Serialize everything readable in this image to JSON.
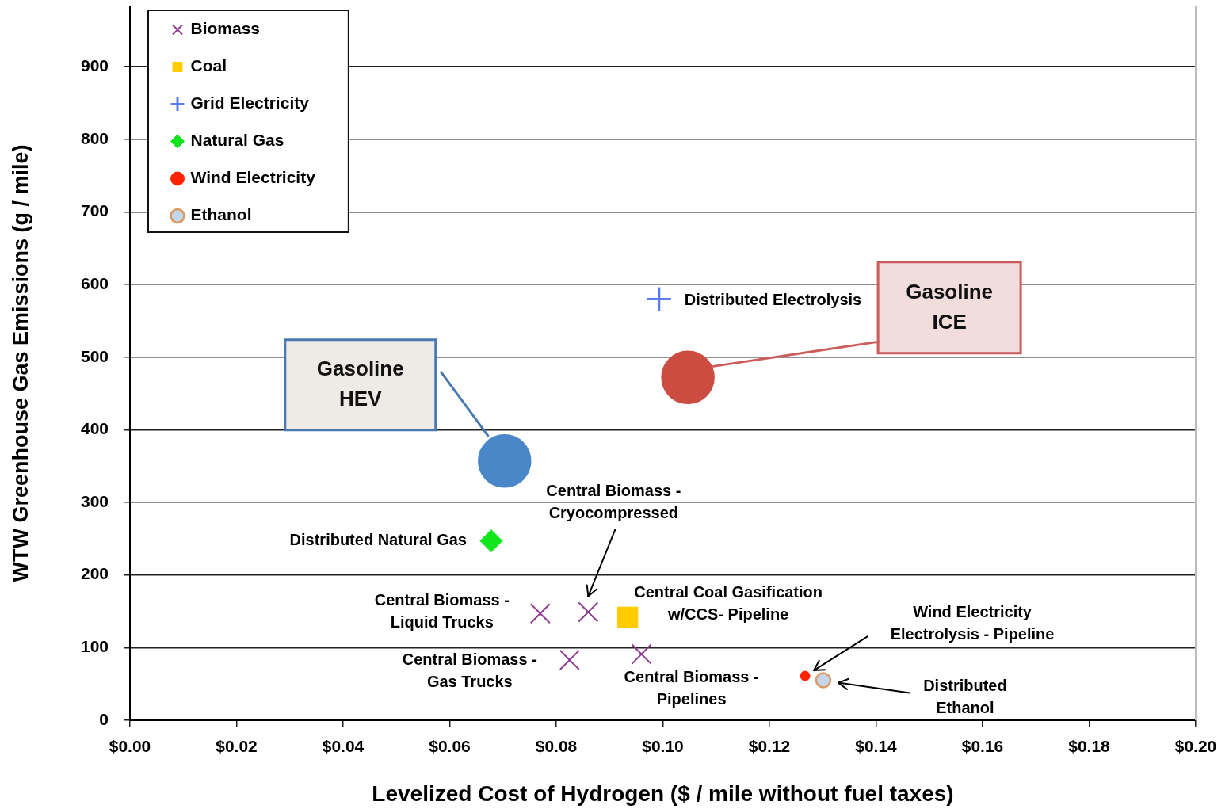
{
  "chart_data": {
    "type": "scatter",
    "xlabel": "Levelized Cost of Hydrogen ($ / mile without fuel taxes)",
    "ylabel": "WTW Greenhouse Gas Emissions (g / mile)",
    "xlim": [
      0,
      0.2
    ],
    "xticks": [
      {
        "value": 0,
        "label": "$0.00"
      },
      {
        "value": 0.02,
        "label": "$0.02"
      },
      {
        "value": 0.04,
        "label": "$0.04"
      },
      {
        "value": 0.06,
        "label": "$0.06"
      },
      {
        "value": 0.08,
        "label": "$0.08"
      },
      {
        "value": 0.1,
        "label": "$0.10"
      },
      {
        "value": 0.12,
        "label": "$0.12"
      },
      {
        "value": 0.14,
        "label": "$0.14"
      },
      {
        "value": 0.16,
        "label": "$0.16"
      },
      {
        "value": 0.18,
        "label": "$0.18"
      },
      {
        "value": 0.2,
        "label": "$0.20"
      }
    ],
    "ylim": [
      0,
      983
    ],
    "yticks": [
      0,
      100,
      200,
      300,
      400,
      500,
      600,
      700,
      800,
      900
    ],
    "grid": "y",
    "legend": "top left",
    "series": [
      {
        "name": "Biomass",
        "color": "#8e3a8e",
        "marker": "cross",
        "x": [
          0.077,
          0.086,
          0.0825,
          0.096
        ],
        "values": [
          147,
          149,
          83,
          91
        ]
      },
      {
        "name": "Coal",
        "color": "#ffcc00",
        "marker": "square",
        "x": [
          0.0934
        ],
        "values": [
          142
        ]
      },
      {
        "name": "Grid Electricity",
        "color": "#5a7cf0",
        "marker": "cross",
        "x": [
          0.0993
        ],
        "values": [
          580
        ]
      },
      {
        "name": "Natural Gas",
        "color": "#11e51b",
        "marker": "diamond",
        "x": [
          0.0678
        ],
        "values": [
          247
        ]
      },
      {
        "name": "Wind Electricity",
        "color": "#ff2200",
        "marker": "circle",
        "x": [
          0.1267
        ],
        "values": [
          61
        ]
      },
      {
        "name": "Ethanol",
        "color": "#c5d5ea",
        "marker": "circle",
        "x": [
          0.1301
        ],
        "values": [
          55
        ]
      },
      {
        "color": "#4a87c9",
        "marker": "circle",
        "x": [
          0.0703
        ],
        "values": [
          357
        ]
      },
      {
        "color": "#cd4c42",
        "marker": "circle",
        "x": [
          0.1047
        ],
        "values": [
          472
        ]
      }
    ],
    "annotations": [
      "Central Biomass - Cryocompressed",
      {
        "text": "Central Coal Gasification w/CCS- Pipeline",
        "x": 0.0934,
        "y": 142
      },
      {
        "text": "Central Biomass - Liquid Trucks",
        "x": 0.077,
        "y": 147
      },
      {
        "text": "Central Biomass - Gas Trucks",
        "x": 0.0825,
        "y": 83
      },
      {
        "text": "Central Biomass - Pipelines",
        "x": 0.096,
        "y": 91
      },
      {
        "text": "Distributed Natural Gas",
        "x": 0.0678,
        "y": 247
      },
      {
        "text": "Distributed Electrolysis",
        "x": 0.0993,
        "y": 580
      },
      "Wind Electricity Electrolysis - Pipeline",
      "Distributed Ethanol",
      "Gasoline HEV",
      "Gasoline ICE"
    ]
  }
}
